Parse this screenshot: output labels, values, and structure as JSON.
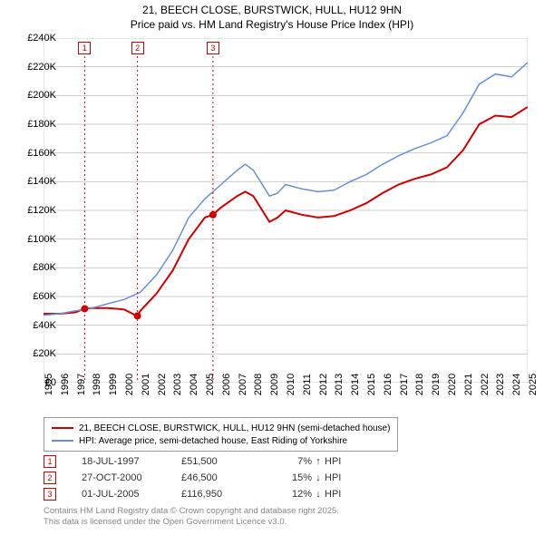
{
  "title": {
    "line1": "21, BEECH CLOSE, BURSTWICK, HULL, HU12 9HN",
    "line2": "Price paid vs. HM Land Registry's House Price Index (HPI)"
  },
  "chart": {
    "type": "line",
    "background_color": "#ffffff",
    "grid_color": "#cccccc",
    "axis_color": "#666666",
    "font_size_axis": 11,
    "y": {
      "min": 0,
      "max": 240000,
      "step": 20000,
      "ticks": [
        "£0",
        "£20K",
        "£40K",
        "£60K",
        "£80K",
        "£100K",
        "£120K",
        "£140K",
        "£160K",
        "£180K",
        "£200K",
        "£220K",
        "£240K"
      ]
    },
    "x": {
      "min": 1995,
      "max": 2025,
      "ticks": [
        1995,
        1996,
        1997,
        1998,
        1999,
        2000,
        2001,
        2002,
        2003,
        2004,
        2005,
        2006,
        2007,
        2008,
        2009,
        2010,
        2011,
        2012,
        2013,
        2014,
        2015,
        2016,
        2017,
        2018,
        2019,
        2020,
        2021,
        2022,
        2023,
        2024,
        2025
      ]
    },
    "series": [
      {
        "name": "price_paid",
        "label": "21, BEECH CLOSE, BURSTWICK, HULL, HU12 9HN (semi-detached house)",
        "color": "#d00000",
        "line_width": 2,
        "points": [
          [
            1995,
            48000
          ],
          [
            1996,
            48000
          ],
          [
            1997,
            49000
          ],
          [
            1997.5,
            51500
          ],
          [
            1998,
            52000
          ],
          [
            1999,
            52000
          ],
          [
            2000,
            51000
          ],
          [
            2000.8,
            46500
          ],
          [
            2001,
            50000
          ],
          [
            2002,
            62000
          ],
          [
            2003,
            78000
          ],
          [
            2004,
            100000
          ],
          [
            2005,
            115000
          ],
          [
            2005.5,
            116950
          ],
          [
            2006,
            122000
          ],
          [
            2007,
            130000
          ],
          [
            2007.5,
            133000
          ],
          [
            2008,
            130000
          ],
          [
            2009,
            112000
          ],
          [
            2009.5,
            115000
          ],
          [
            2010,
            120000
          ],
          [
            2011,
            117000
          ],
          [
            2012,
            115000
          ],
          [
            2013,
            116000
          ],
          [
            2014,
            120000
          ],
          [
            2015,
            125000
          ],
          [
            2016,
            132000
          ],
          [
            2017,
            138000
          ],
          [
            2018,
            142000
          ],
          [
            2019,
            145000
          ],
          [
            2020,
            150000
          ],
          [
            2021,
            162000
          ],
          [
            2022,
            180000
          ],
          [
            2023,
            186000
          ],
          [
            2024,
            185000
          ],
          [
            2025,
            192000
          ]
        ]
      },
      {
        "name": "hpi",
        "label": "HPI: Average price, semi-detached house, East Riding of Yorkshire",
        "color": "#6a8fd8",
        "line_width": 1.5,
        "points": [
          [
            1995,
            47000
          ],
          [
            1996,
            48000
          ],
          [
            1997,
            50000
          ],
          [
            1998,
            52000
          ],
          [
            1999,
            55000
          ],
          [
            2000,
            58000
          ],
          [
            2001,
            63000
          ],
          [
            2002,
            75000
          ],
          [
            2003,
            92000
          ],
          [
            2004,
            115000
          ],
          [
            2005,
            128000
          ],
          [
            2006,
            138000
          ],
          [
            2007,
            148000
          ],
          [
            2007.5,
            152000
          ],
          [
            2008,
            148000
          ],
          [
            2009,
            130000
          ],
          [
            2009.5,
            132000
          ],
          [
            2010,
            138000
          ],
          [
            2011,
            135000
          ],
          [
            2012,
            133000
          ],
          [
            2013,
            134000
          ],
          [
            2014,
            140000
          ],
          [
            2015,
            145000
          ],
          [
            2016,
            152000
          ],
          [
            2017,
            158000
          ],
          [
            2018,
            163000
          ],
          [
            2019,
            167000
          ],
          [
            2020,
            172000
          ],
          [
            2021,
            188000
          ],
          [
            2022,
            208000
          ],
          [
            2023,
            215000
          ],
          [
            2024,
            213000
          ],
          [
            2025,
            223000
          ]
        ]
      }
    ],
    "sale_markers": [
      {
        "n": "1",
        "year": 1997.55,
        "price": 51500
      },
      {
        "n": "2",
        "year": 2000.82,
        "price": 46500
      },
      {
        "n": "3",
        "year": 2005.5,
        "price": 116950
      }
    ],
    "marker_dot_color": "#d00000",
    "marker_line_color": "#d00000",
    "marker_dash": "2,3"
  },
  "legend": {
    "border_color": "#999999",
    "font_size": 10
  },
  "sales_table": {
    "rows": [
      {
        "n": "1",
        "date": "18-JUL-1997",
        "price": "£51,500",
        "pct": "7%",
        "arrow": "↑",
        "label": "HPI"
      },
      {
        "n": "2",
        "date": "27-OCT-2000",
        "price": "£46,500",
        "pct": "15%",
        "arrow": "↓",
        "label": "HPI"
      },
      {
        "n": "3",
        "date": "01-JUL-2005",
        "price": "£116,950",
        "pct": "12%",
        "arrow": "↓",
        "label": "HPI"
      }
    ],
    "font_size": 11,
    "text_color": "#333333",
    "badge_border": "#d00000",
    "badge_text": "#d00000"
  },
  "footer": {
    "line1": "Contains HM Land Registry data © Crown copyright and database right 2025.",
    "line2": "This data is licensed under the Open Government Licence v3.0.",
    "color": "#888888",
    "font_size": 9.5
  }
}
